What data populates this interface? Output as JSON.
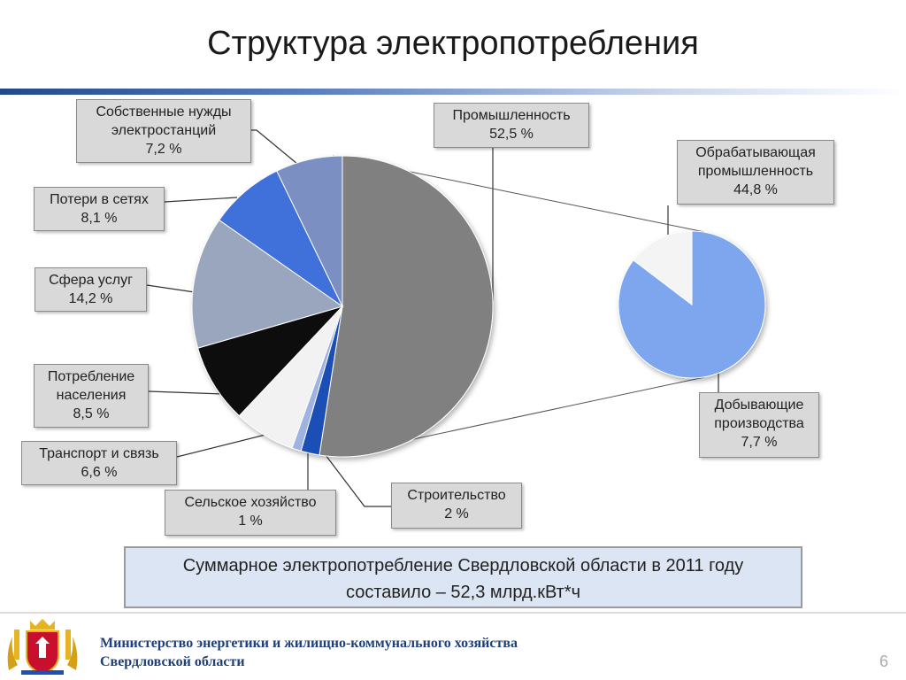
{
  "slide": {
    "title": "Структура электропотребления",
    "page_number": "6"
  },
  "chart_data": {
    "type": "pie",
    "title": "Структура электропотребления",
    "slices": [
      {
        "name": "Промышленность",
        "value": 52.5,
        "label": "52,5 %",
        "color": "#808080"
      },
      {
        "name": "Строительство",
        "value": 2,
        "label": "2 %",
        "color": "#1f4fb5"
      },
      {
        "name": "Сельское хозяйство",
        "value": 1,
        "label": "1 %",
        "color": "#9fb3e0"
      },
      {
        "name": "Транспорт и связь",
        "value": 6.6,
        "label": "6,6 %",
        "color": "#f2f2f2"
      },
      {
        "name": "Потребление населения",
        "value": 8.5,
        "label": "8,5 %",
        "color": "#0d0d0d"
      },
      {
        "name": "Сфера услуг",
        "value": 14.2,
        "label": "14,2 %",
        "color": "#9aa6bd"
      },
      {
        "name": "Потери в сетях",
        "value": 8.1,
        "label": "8,1 %",
        "color": "#3f6fd9"
      },
      {
        "name": "Собственные нужды электростанций",
        "value": 7.2,
        "label": "7,2 %",
        "color": "#7b8fc2"
      }
    ],
    "sub_pie": {
      "parent": "Промышленность",
      "slices": [
        {
          "name": "Обрабатывающая промышленность",
          "value": 44.8,
          "label": "44,8 %",
          "color": "#7ea6ef"
        },
        {
          "name": "Добывающие производства",
          "value": 7.7,
          "label": "7,7 %",
          "color": "#f4f4f4"
        }
      ]
    }
  },
  "callouts": {
    "own_needs": {
      "line1": "Собственные нужды",
      "line2": "электростанций",
      "value": "7,2 %"
    },
    "losses": {
      "line1": "Потери в сетях",
      "value": "8,1 %"
    },
    "services": {
      "line1": "Сфера услуг",
      "value": "14,2 %"
    },
    "population": {
      "line1": "Потребление",
      "line2": "населения",
      "value": "8,5 %"
    },
    "transport": {
      "line1": "Транспорт и связь",
      "value": "6,6 %"
    },
    "agriculture": {
      "line1": "Сельское хозяйство",
      "value": "1 %"
    },
    "construction": {
      "line1": "Строительство",
      "value": "2 %"
    },
    "industry": {
      "line1": "Промышленность",
      "value": "52,5 %"
    },
    "manufacturing": {
      "line1": "Обрабатывающая",
      "line2": "промышленность",
      "value": "44,8 %"
    },
    "mining": {
      "line1": "Добывающие",
      "line2": "производства",
      "value": "7,7 %"
    }
  },
  "summary": {
    "line1": "Суммарное электропотребление Свердловской области в 2011 году",
    "line2": "составило – 52,3 млрд.кВт*ч"
  },
  "footer": {
    "ministry_line1": "Министерство энергетики и жилищно-коммунального хозяйства",
    "ministry_line2": "Свердловской области"
  }
}
